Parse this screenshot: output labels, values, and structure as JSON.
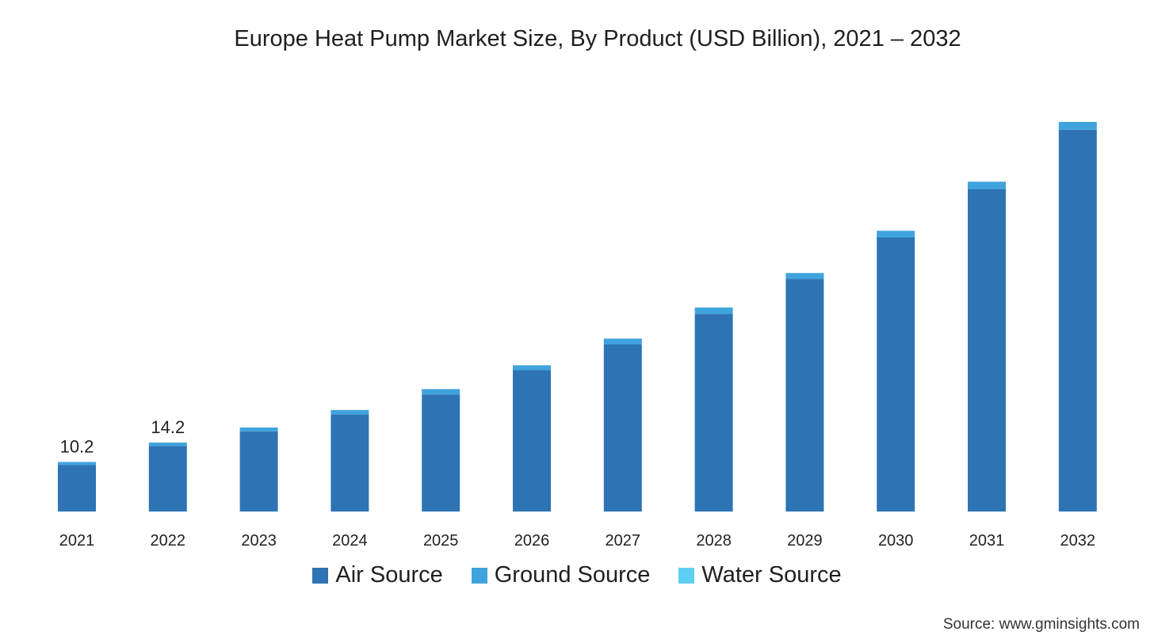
{
  "chart_data": {
    "type": "bar",
    "stacked": true,
    "title": "Europe Heat Pump Market Size, By Product (USD Billion), 2021 – 2032",
    "categories": [
      "2021",
      "2022",
      "2023",
      "2024",
      "2025",
      "2026",
      "2027",
      "2028",
      "2029",
      "2030",
      "2031",
      "2032"
    ],
    "series": [
      {
        "name": "Air Source",
        "color": "#2e74b5",
        "values": [
          9.6,
          13.5,
          16.5,
          20.0,
          24.1,
          29.1,
          34.4,
          40.7,
          47.9,
          56.4,
          66.4,
          78.6
        ]
      },
      {
        "name": "Ground Source",
        "color": "#3fa3dd",
        "values": [
          0.6,
          0.7,
          0.8,
          0.9,
          1.1,
          1.0,
          1.2,
          1.3,
          1.2,
          1.4,
          1.5,
          1.6
        ]
      },
      {
        "name": "Water Source",
        "color": "#5ecff2",
        "values": [
          0,
          0,
          0,
          0,
          0,
          0,
          0,
          0,
          0,
          0,
          0,
          0
        ]
      }
    ],
    "data_labels": [
      {
        "category": "2021",
        "text": "10.2"
      },
      {
        "category": "2022",
        "text": "14.2"
      }
    ],
    "ylim": [
      0,
      80.2
    ],
    "grid": false,
    "legend_position": "bottom"
  },
  "legend": {
    "items": [
      {
        "label": "Air Source",
        "color": "#2e74b5"
      },
      {
        "label": "Ground Source",
        "color": "#3fa3dd"
      },
      {
        "label": "Water Source",
        "color": "#5ecff2"
      }
    ]
  },
  "source": "Source: www.gminsights.com"
}
